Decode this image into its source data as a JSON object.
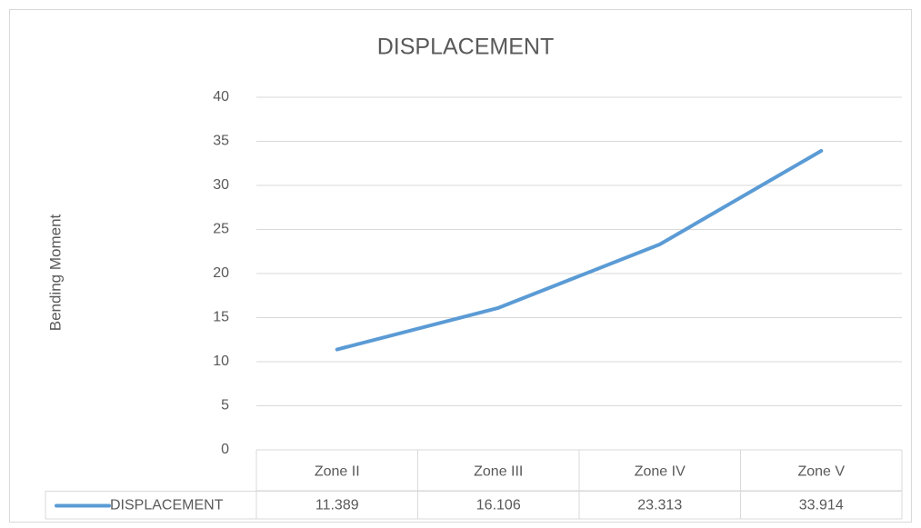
{
  "chart_data": {
    "type": "line",
    "title": "DISPLACEMENT",
    "y_label": "Bending Moment",
    "categories": [
      "Zone II",
      "Zone III",
      "Zone IV",
      "Zone V"
    ],
    "series": [
      {
        "name": "DISPLACEMENT",
        "color": "#5b9bd5",
        "values": [
          11.389,
          16.106,
          23.313,
          33.914
        ]
      }
    ],
    "ylim": [
      0,
      40
    ],
    "yticks": [
      0,
      5,
      10,
      15,
      20,
      25,
      30,
      35,
      40
    ],
    "grid": true,
    "data_table": true
  }
}
